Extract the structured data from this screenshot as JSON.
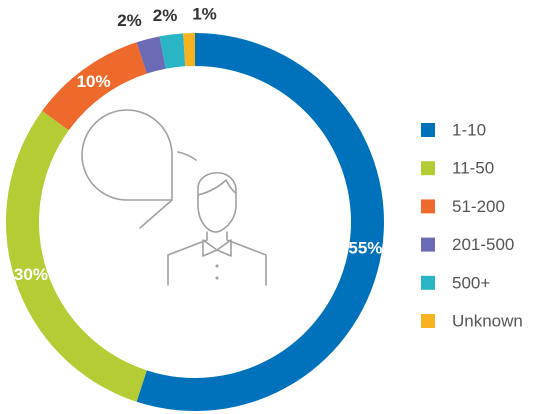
{
  "chart_data": {
    "type": "donut",
    "categories": [
      "1-10",
      "11-50",
      "51-200",
      "201-500",
      "500+",
      "Unknown"
    ],
    "values": [
      55,
      30,
      10,
      2,
      2,
      1
    ],
    "value_labels": [
      "55%",
      "30%",
      "10%",
      "2%",
      "2%",
      "1%"
    ],
    "colors": [
      "#0072bc",
      "#b5cc34",
      "#ee6a2c",
      "#6b6bb5",
      "#29b5c3",
      "#f7b21f"
    ],
    "legend": "right"
  }
}
